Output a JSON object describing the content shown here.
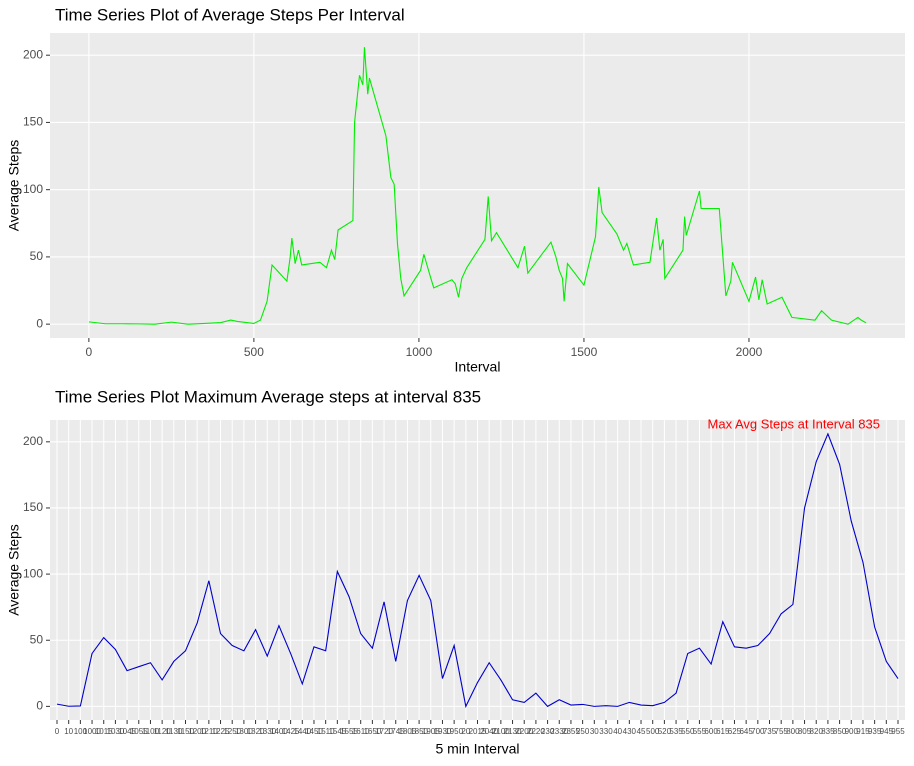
{
  "chart_data": [
    {
      "type": "line",
      "title": "Time Series Plot of Average Steps Per Interval",
      "x_label": "Interval",
      "y_label": "Average Steps",
      "x": [
        0,
        50,
        100,
        150,
        200,
        250,
        300,
        350,
        400,
        430,
        450,
        500,
        520,
        540,
        555,
        600,
        610,
        615,
        625,
        635,
        645,
        700,
        720,
        735,
        745,
        755,
        800,
        805,
        820,
        830,
        835,
        845,
        850,
        900,
        915,
        925,
        935,
        945,
        955,
        1005,
        1015,
        1035,
        1045,
        1100,
        1110,
        1120,
        1130,
        1145,
        1200,
        1210,
        1220,
        1235,
        1300,
        1320,
        1330,
        1400,
        1415,
        1425,
        1435,
        1440,
        1450,
        1500,
        1535,
        1545,
        1555,
        1600,
        1620,
        1630,
        1650,
        1700,
        1720,
        1730,
        1740,
        1745,
        1800,
        1805,
        1810,
        1850,
        1855,
        1910,
        1930,
        1945,
        1950,
        2000,
        2020,
        2030,
        2040,
        2055,
        2100,
        2130,
        2200,
        2220,
        2250,
        2300,
        2330,
        2340,
        2355
      ],
      "series": [
        {
          "color": "#00ee00",
          "values": [
            1.7,
            0.3,
            0.3,
            0.2,
            0,
            1.5,
            0,
            0.5,
            1.2,
            3,
            2,
            0.5,
            3,
            17,
            44,
            32,
            50,
            64,
            45,
            55,
            44,
            46,
            42,
            55,
            48,
            70,
            77,
            150,
            185,
            178,
            206,
            171,
            183,
            140,
            109,
            104,
            60,
            34,
            21,
            40,
            52,
            35,
            27,
            33,
            30,
            20,
            34,
            42,
            63,
            95,
            62,
            68,
            42,
            58,
            38,
            61,
            50,
            40,
            34,
            17,
            45,
            29,
            65,
            102,
            83,
            67,
            55,
            60,
            44,
            46,
            79,
            55,
            63,
            34,
            55,
            80,
            66,
            99,
            86,
            86,
            21,
            32,
            46,
            17,
            35,
            18,
            33,
            15,
            20,
            5,
            3,
            10,
            3,
            0,
            5,
            3,
            1
          ]
        }
      ],
      "xlim": [
        -117.75,
        2472.75
      ],
      "xticks": [
        0,
        500,
        1000,
        1500,
        2000
      ],
      "ylim": [
        -10.3,
        216.5
      ],
      "yticks": [
        0,
        50,
        100,
        150,
        200
      ],
      "grid": true
    },
    {
      "type": "line",
      "title": "Time Series Plot Maximum Average steps at interval 835",
      "x_label": "5 min Interval",
      "y_label": "Average Steps",
      "annotation": "Max Avg Steps at Interval 835",
      "annotation_color": "#ff0000",
      "categories": [
        "0",
        "10",
        "100",
        "1000",
        "1015",
        "1030",
        "1045",
        "1055",
        "1100",
        "1120",
        "1130",
        "1150",
        "1200",
        "1210",
        "1225",
        "1250",
        "1300",
        "1320",
        "1330",
        "1400",
        "1425",
        "1440",
        "1450",
        "1510",
        "1545",
        "1555",
        "1610",
        "1650",
        "1720",
        "1745",
        "1805",
        "1850",
        "1905",
        "1930",
        "1950",
        "20",
        "2015",
        "2040",
        "2100",
        "2130",
        "2200",
        "2220",
        "230",
        "2330",
        "2355",
        "250",
        "30",
        "330",
        "40",
        "430",
        "45",
        "500",
        "520",
        "535",
        "550",
        "555",
        "600",
        "615",
        "625",
        "645",
        "700",
        "735",
        "755",
        "800",
        "805",
        "820",
        "835",
        "850",
        "900",
        "915",
        "935",
        "945",
        "955"
      ],
      "series": [
        {
          "color": "#0000cc",
          "values": [
            1.7,
            0.1,
            0.3,
            40,
            52,
            43,
            27,
            30,
            33,
            20,
            34,
            42,
            63,
            95,
            55,
            46,
            42,
            58,
            38,
            61,
            40,
            17,
            45,
            42,
            102,
            83,
            55,
            44,
            79,
            34,
            80,
            99,
            80,
            21,
            46,
            0,
            18,
            33,
            20,
            5,
            3,
            10,
            0,
            5,
            1,
            1.5,
            0,
            0.5,
            0,
            3,
            1,
            0.5,
            3,
            10,
            40,
            44,
            32,
            64,
            45,
            44,
            46,
            55,
            70,
            77,
            150,
            185,
            206,
            183,
            140,
            109,
            60,
            34,
            21
          ]
        }
      ],
      "ylim": [
        -10.3,
        216.5
      ],
      "yticks": [
        0,
        50,
        100,
        150,
        200
      ],
      "grid": true
    }
  ]
}
